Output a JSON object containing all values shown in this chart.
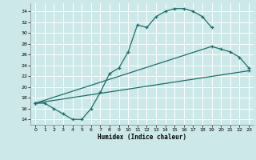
{
  "title": "",
  "xlabel": "Humidex (Indice chaleur)",
  "bg_color": "#cce8e8",
  "line_color": "#1a6e6a",
  "grid_color": "#ffffff",
  "xlim": [
    -0.5,
    23.5
  ],
  "ylim": [
    13.0,
    35.5
  ],
  "xticks": [
    0,
    1,
    2,
    3,
    4,
    5,
    6,
    7,
    8,
    9,
    10,
    11,
    12,
    13,
    14,
    15,
    16,
    17,
    18,
    19,
    20,
    21,
    22,
    23
  ],
  "yticks": [
    14,
    16,
    18,
    20,
    22,
    24,
    26,
    28,
    30,
    32,
    34
  ],
  "curve1_x": [
    0,
    1,
    2,
    3,
    4,
    5,
    6,
    7,
    8,
    9,
    10,
    11,
    12,
    13,
    14,
    15,
    16,
    17,
    18,
    19
  ],
  "curve1_y": [
    17,
    17,
    16,
    15,
    14,
    14,
    16,
    19,
    22.5,
    23.5,
    26.5,
    31.5,
    31,
    33,
    34,
    34.5,
    34.5,
    34,
    33,
    31
  ],
  "curve2_x": [
    0,
    19,
    20,
    21,
    22,
    23
  ],
  "curve2_y": [
    17,
    27.5,
    27,
    26.5,
    25.5,
    23.5
  ],
  "curve3_x": [
    0,
    23
  ],
  "curve3_y": [
    17,
    23
  ]
}
